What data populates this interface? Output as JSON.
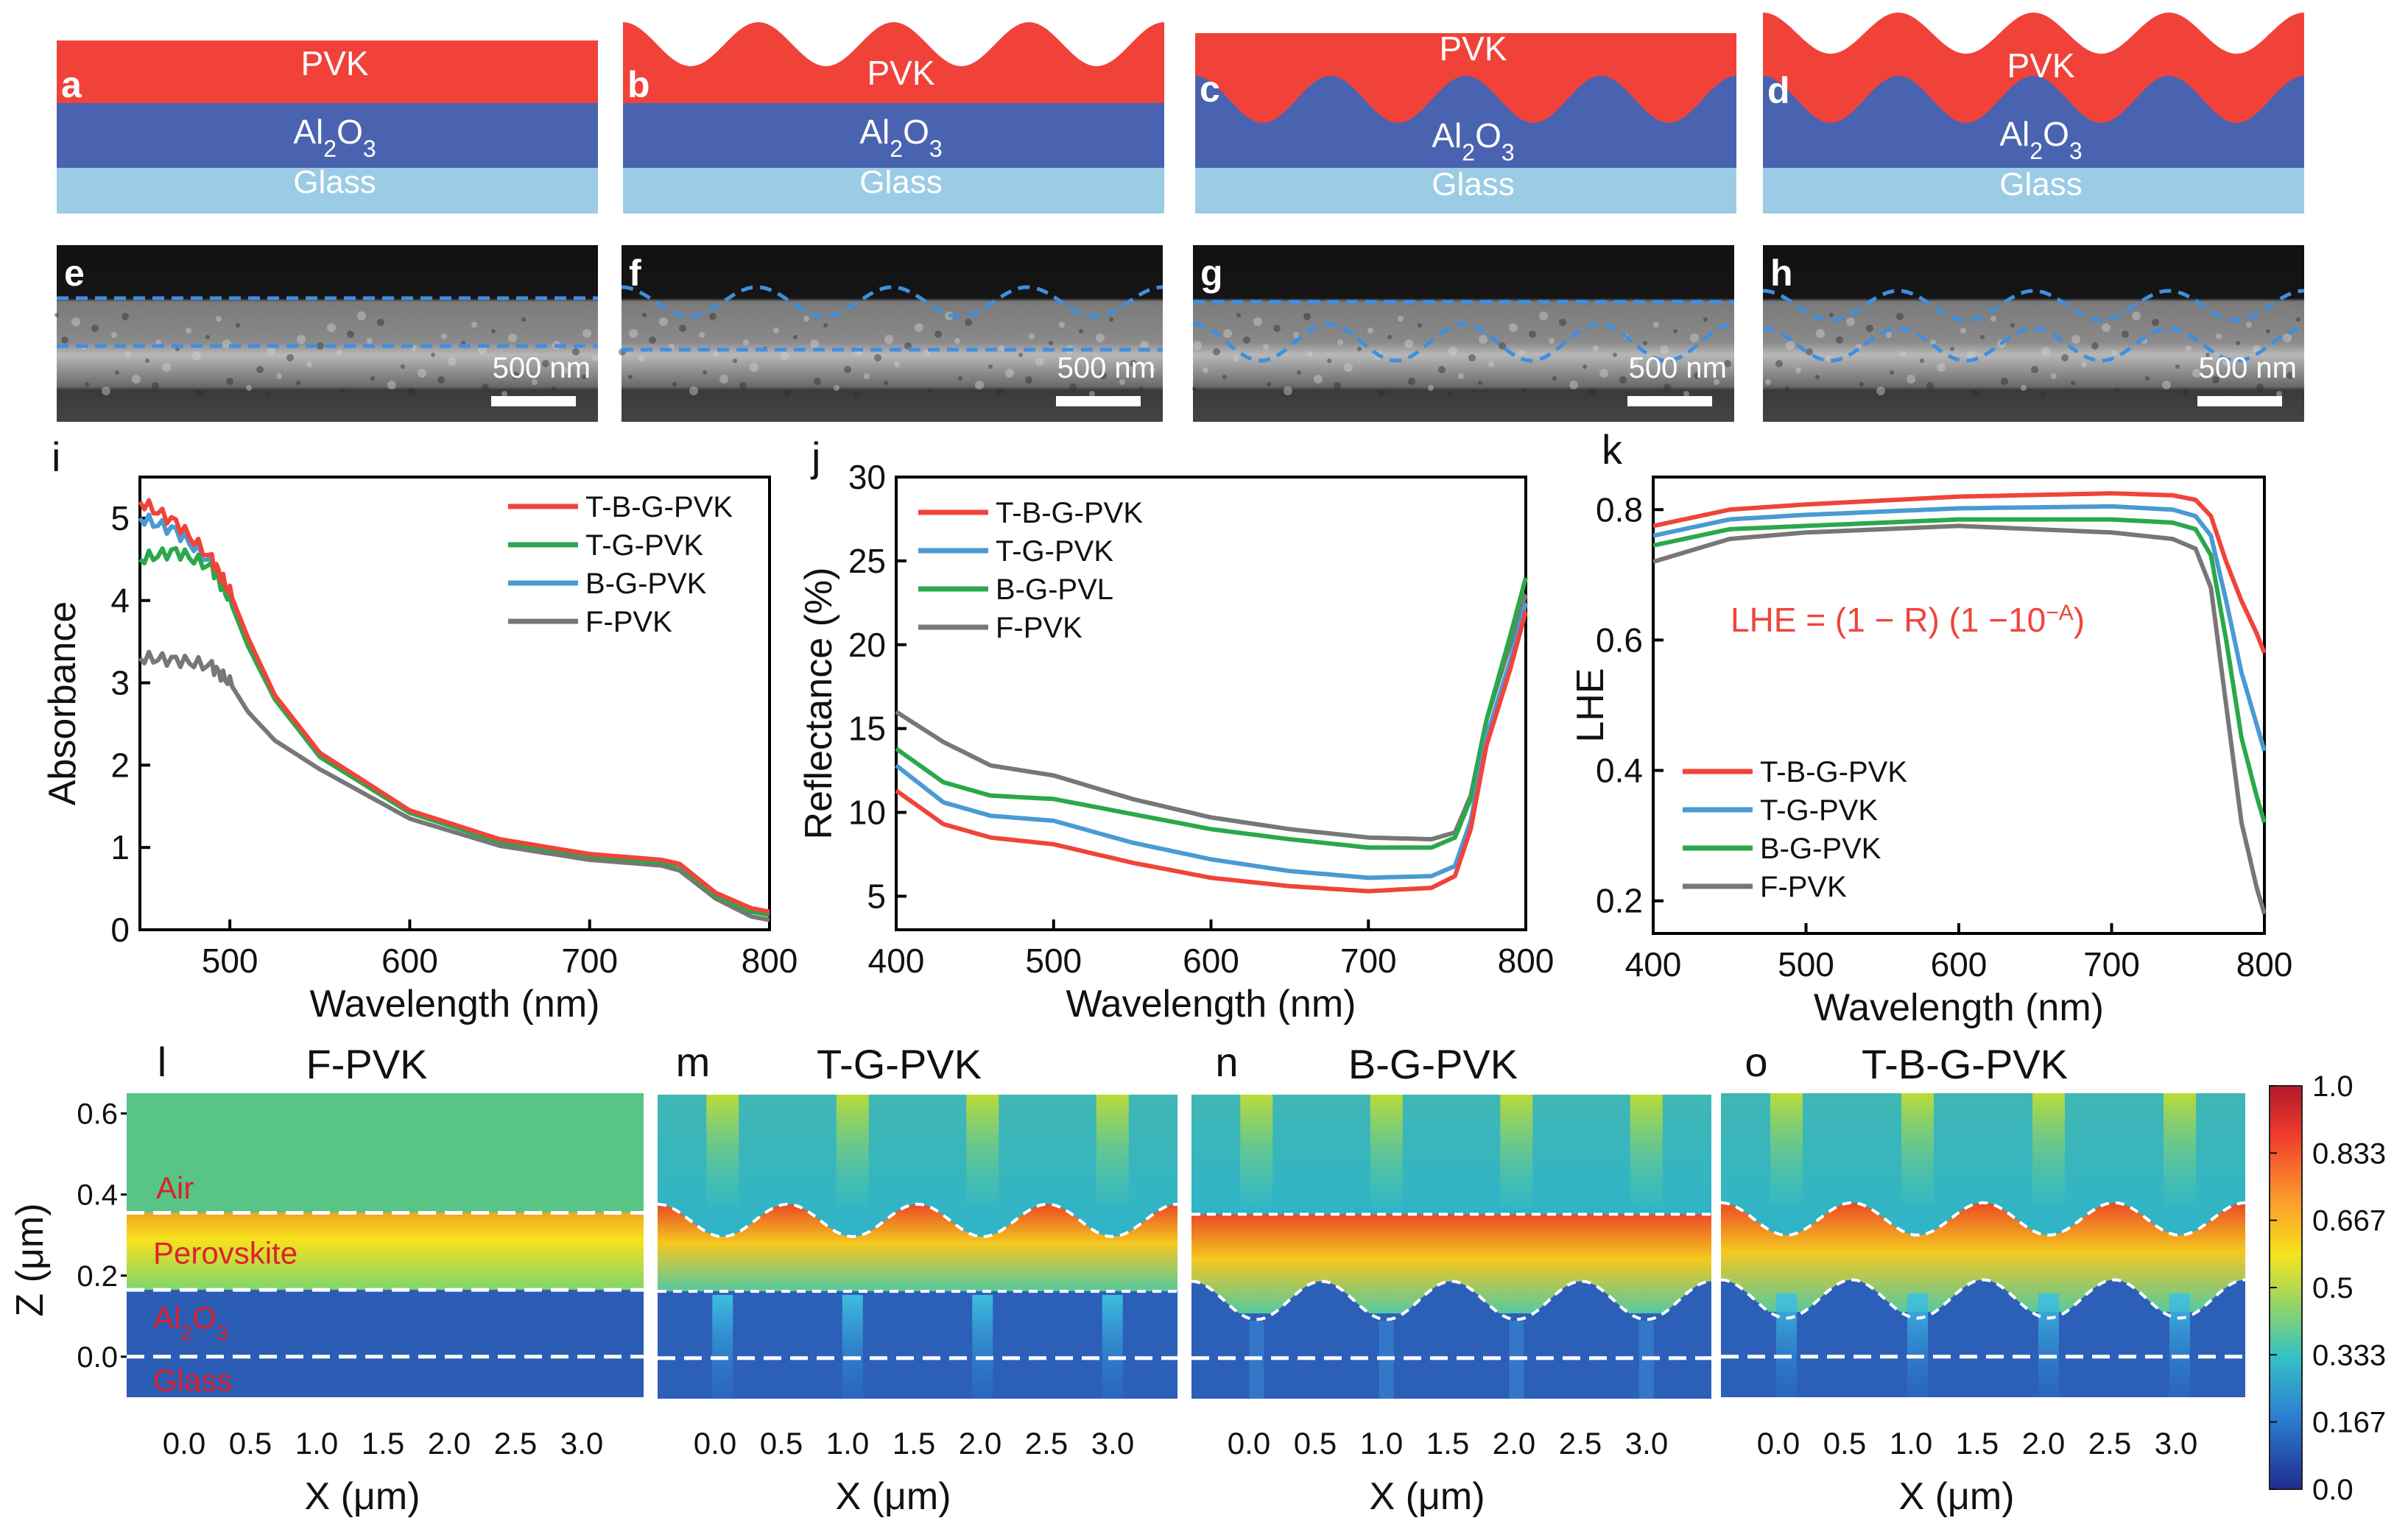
{
  "structures": {
    "panels": [
      {
        "letter": "a",
        "top_label": "PVK",
        "mid_label": "Al",
        "mid_sub": "2",
        "mid_tail": "O",
        "mid_sub2": "3",
        "bottom_label": "Glass"
      },
      {
        "letter": "b",
        "top_label": "PVK",
        "mid_label": "Al",
        "mid_sub": "2",
        "mid_tail": "O",
        "mid_sub2": "3",
        "bottom_label": "Glass"
      },
      {
        "letter": "c",
        "top_label": "PVK",
        "mid_label": "Al",
        "mid_sub": "2",
        "mid_tail": "O",
        "mid_sub2": "3",
        "bottom_label": "Glass"
      },
      {
        "letter": "d",
        "top_label": "PVK",
        "mid_label": "Al",
        "mid_sub": "2",
        "mid_tail": "O",
        "mid_sub2": "3",
        "bottom_label": "Glass"
      }
    ],
    "colors": {
      "pvk": "#f1423a",
      "al2o3": "#4a63b0",
      "glass": "#9ccbe6"
    }
  },
  "sem": {
    "panels": [
      {
        "letter": "e",
        "scale": "500 nm"
      },
      {
        "letter": "f",
        "scale": "500 nm"
      },
      {
        "letter": "g",
        "scale": "500 nm"
      },
      {
        "letter": "h",
        "scale": "500 nm"
      }
    ]
  },
  "chart_data": [
    {
      "id": "i",
      "type": "line",
      "panel_letter": "i",
      "xlabel": "Wavelength (nm)",
      "ylabel": "Absorbance",
      "xlim": [
        450,
        800
      ],
      "ylim": [
        0,
        5.5
      ],
      "xticks": [
        500,
        600,
        700,
        800
      ],
      "yticks": [
        0,
        1,
        2,
        3,
        4,
        5
      ],
      "legend_position": "top-right",
      "x": [
        450,
        470,
        490,
        500,
        510,
        525,
        550,
        600,
        650,
        700,
        740,
        750,
        770,
        790,
        800
      ],
      "series": [
        {
          "name": "T-B-G-PVK",
          "color": "#f0443b",
          "values": [
            5.2,
            4.95,
            4.5,
            4.1,
            3.55,
            2.85,
            2.15,
            1.45,
            1.1,
            0.92,
            0.85,
            0.8,
            0.45,
            0.26,
            0.22
          ]
        },
        {
          "name": "T-G-PVK",
          "color": "#2aa84a",
          "values": [
            4.5,
            4.6,
            4.4,
            4.0,
            3.45,
            2.8,
            2.1,
            1.42,
            1.07,
            0.9,
            0.82,
            0.78,
            0.42,
            0.22,
            0.18
          ]
        },
        {
          "name": "B-G-PVK",
          "color": "#4a9ad3",
          "values": [
            5.0,
            4.85,
            4.45,
            4.05,
            3.5,
            2.82,
            2.12,
            1.43,
            1.08,
            0.91,
            0.83,
            0.79,
            0.43,
            0.23,
            0.19
          ]
        },
        {
          "name": "F-PVK",
          "color": "#777777",
          "values": [
            3.3,
            3.28,
            3.2,
            3.0,
            2.65,
            2.3,
            1.95,
            1.35,
            1.02,
            0.85,
            0.78,
            0.72,
            0.38,
            0.16,
            0.12
          ]
        }
      ]
    },
    {
      "id": "j",
      "type": "line",
      "panel_letter": "j",
      "xlabel": "Wavelength (nm)",
      "ylabel": "Reflectance (%)",
      "xlim": [
        400,
        800
      ],
      "ylim": [
        3,
        30
      ],
      "xticks": [
        400,
        500,
        600,
        700,
        800
      ],
      "yticks": [
        5,
        10,
        15,
        20,
        25,
        30
      ],
      "legend_position": "top-left",
      "x": [
        400,
        430,
        460,
        500,
        550,
        600,
        650,
        700,
        740,
        755,
        765,
        775,
        790,
        800
      ],
      "series": [
        {
          "name": "T-B-G-PVK",
          "color": "#f0443b",
          "values": [
            11.3,
            9.3,
            8.5,
            8.1,
            7.0,
            6.1,
            5.6,
            5.3,
            5.5,
            6.2,
            9.0,
            14.0,
            18.5,
            22.0
          ]
        },
        {
          "name": "T-G-PVK",
          "color": "#4a9ad3",
          "values": [
            12.8,
            10.6,
            9.8,
            9.5,
            8.2,
            7.2,
            6.5,
            6.1,
            6.2,
            6.8,
            9.5,
            14.5,
            19.0,
            22.5
          ]
        },
        {
          "name": "B-G-PVL",
          "color": "#2aa84a",
          "values": [
            13.8,
            11.8,
            11.0,
            10.8,
            9.9,
            9.0,
            8.4,
            7.9,
            7.9,
            8.5,
            10.8,
            15.5,
            20.5,
            24.0
          ]
        },
        {
          "name": "F-PVK",
          "color": "#777777",
          "values": [
            16.0,
            14.2,
            12.8,
            12.2,
            10.8,
            9.7,
            9.0,
            8.5,
            8.4,
            8.8,
            11.0,
            15.5,
            20.0,
            23.0
          ]
        }
      ]
    },
    {
      "id": "k",
      "type": "line",
      "panel_letter": "k",
      "xlabel": "Wavelength (nm)",
      "ylabel": "LHE",
      "xlim": [
        400,
        800
      ],
      "ylim": [
        0.15,
        0.85
      ],
      "xticks": [
        400,
        500,
        600,
        700,
        800
      ],
      "yticks": [
        0.2,
        0.4,
        0.6,
        0.8
      ],
      "legend_position": "bottom-left",
      "annotation": "LHE = (1 − R) (1 −10",
      "annotation_sup": "−A",
      "annotation_tail": ")",
      "x": [
        400,
        450,
        500,
        600,
        700,
        740,
        755,
        765,
        775,
        785,
        795,
        800
      ],
      "series": [
        {
          "name": "T-B-G-PVK",
          "color": "#f0443b",
          "values": [
            0.775,
            0.8,
            0.808,
            0.82,
            0.825,
            0.822,
            0.815,
            0.79,
            0.72,
            0.66,
            0.61,
            0.58
          ]
        },
        {
          "name": "T-G-PVK",
          "color": "#4a9ad3",
          "values": [
            0.76,
            0.785,
            0.792,
            0.802,
            0.805,
            0.8,
            0.79,
            0.76,
            0.66,
            0.55,
            0.47,
            0.43
          ]
        },
        {
          "name": "B-G-PVK",
          "color": "#2aa84a",
          "values": [
            0.745,
            0.77,
            0.775,
            0.785,
            0.785,
            0.78,
            0.77,
            0.73,
            0.6,
            0.45,
            0.36,
            0.32
          ]
        },
        {
          "name": "F-PVK",
          "color": "#777777",
          "values": [
            0.72,
            0.755,
            0.765,
            0.775,
            0.765,
            0.755,
            0.74,
            0.68,
            0.5,
            0.32,
            0.22,
            0.18
          ]
        }
      ]
    },
    {
      "id": "field_maps",
      "type": "heatmap",
      "xlabel": "X (μm)",
      "ylabel": "Z (μm)",
      "xticks": [
        "0.0",
        "0.5",
        "1.0",
        "1.5",
        "2.0",
        "2.5",
        "3.0"
      ],
      "yticks": [
        "0.0",
        "0.2",
        "0.4",
        "0.6"
      ],
      "ylim": [
        -0.1,
        0.65
      ],
      "colorbar_ticks": [
        "1.0",
        "0.833",
        "0.667",
        "0.5",
        "0.333",
        "0.167",
        "0.0"
      ],
      "panels": [
        {
          "letter": "l",
          "title": "F-PVK",
          "layer_labels": [
            "Air",
            "Perovskite",
            "Al",
            "Glass"
          ],
          "al_sub": "2",
          "al_tail": "O",
          "al_sub2": "3"
        },
        {
          "letter": "m",
          "title": "T-G-PVK"
        },
        {
          "letter": "n",
          "title": "B-G-PVK"
        },
        {
          "letter": "o",
          "title": "T-B-G-PVK"
        }
      ]
    }
  ]
}
